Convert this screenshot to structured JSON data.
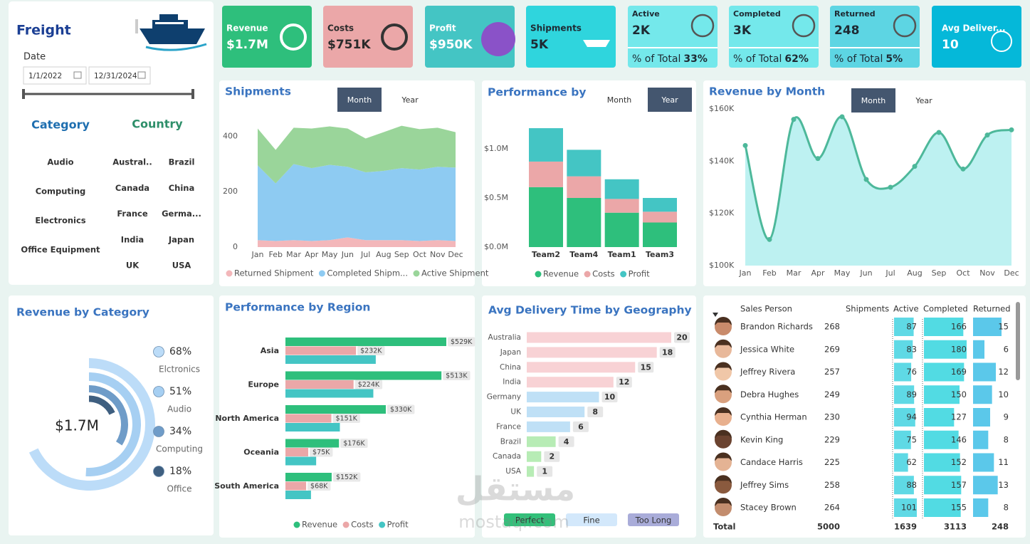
{
  "sidebar": {
    "title": "Freight",
    "date_label": "Date",
    "date_from": "1/1/2022",
    "date_to": "12/31/2024",
    "category_title": "Category",
    "categories": [
      "Audio",
      "Computing",
      "Electronics",
      "Office Equipment"
    ],
    "country_title": "Country",
    "countries": [
      "Austral..",
      "Brazil",
      "Canada",
      "China",
      "France",
      "Germa...",
      "India",
      "Japan",
      "UK",
      "USA"
    ]
  },
  "kpis": [
    {
      "label": "Revenue",
      "value": "$1.7M",
      "color": "#2ebf7c",
      "text_color": "#ffffff"
    },
    {
      "label": "Costs",
      "value": "$751K",
      "color": "#eba7a8",
      "text_color": "#2b2b2b"
    },
    {
      "label": "Profit",
      "value": "$950K",
      "color": "#44c5c4",
      "text_color": "#ffffff"
    },
    {
      "label": "Shipments",
      "value": "5K",
      "color": "#2fd5dd",
      "text_color": "#1e2a33"
    },
    {
      "label": "Active",
      "value": "2K",
      "share_label": "% of Total",
      "share": "33%",
      "color": "#74e8eb",
      "text_color": "#1e2a33"
    },
    {
      "label": "Completed",
      "value": "3K",
      "share_label": "% of Total",
      "share": "62%",
      "color": "#74e8eb",
      "text_color": "#1e2a33"
    },
    {
      "label": "Returned",
      "value": "248",
      "share_label": "% of Total",
      "share": "5%",
      "color": "#5dd5e3",
      "text_color": "#1e2a33"
    },
    {
      "label": "Avg Deliver...",
      "value": "10",
      "color": "#05b8d9",
      "text_color": "#ffffff"
    }
  ],
  "chart_data": [
    {
      "type": "area",
      "title": "Shipments",
      "toggle": [
        "Month",
        "Year"
      ],
      "toggle_selected": 0,
      "categories": [
        "Jan",
        "Feb",
        "Mar",
        "Apr",
        "May",
        "Jun",
        "Jul",
        "Aug",
        "Sep",
        "Oct",
        "Nov",
        "Dec"
      ],
      "series": [
        {
          "name": "Returned Shipment",
          "color": "#f3b7ba",
          "values": [
            25,
            22,
            25,
            22,
            25,
            35,
            25,
            25,
            25,
            22,
            25,
            22
          ]
        },
        {
          "name": "Completed Shipm...",
          "color": "#8ecbf2",
          "values": [
            270,
            208,
            275,
            263,
            272,
            255,
            245,
            250,
            260,
            258,
            265,
            265
          ]
        },
        {
          "name": "Active Shipment",
          "color": "#9ad59a",
          "values": [
            133,
            121,
            131,
            143,
            139,
            138,
            122,
            140,
            153,
            146,
            141,
            128
          ]
        }
      ],
      "ylim": [
        0,
        450
      ],
      "yticks": [
        0,
        200,
        400
      ]
    },
    {
      "type": "bar",
      "title": "Performance by",
      "toggle": [
        "Month",
        "Year"
      ],
      "toggle_selected": 1,
      "categories": [
        "Team2",
        "Team4",
        "Team1",
        "Team3"
      ],
      "series": [
        {
          "name": "Revenue",
          "color": "#2ebf7c",
          "values": [
            0.61,
            0.5,
            0.35,
            0.25
          ]
        },
        {
          "name": "Costs",
          "color": "#eba7a8",
          "values": [
            0.26,
            0.22,
            0.14,
            0.11
          ]
        },
        {
          "name": "Profit",
          "color": "#44c5c4",
          "values": [
            0.34,
            0.27,
            0.2,
            0.14
          ]
        }
      ],
      "ylim": [
        0,
        1.25
      ],
      "yticks": [
        {
          "value": 0,
          "label": "$0.0M"
        },
        {
          "value": 0.5,
          "label": "$0.5M"
        },
        {
          "value": 1,
          "label": "$1.0M"
        }
      ]
    },
    {
      "type": "line",
      "title": "Revenue by Month",
      "toggle": [
        "Month",
        "Year"
      ],
      "toggle_selected": 0,
      "categories": [
        "Jan",
        "Feb",
        "Mar",
        "Apr",
        "May",
        "Jun",
        "Jul",
        "Aug",
        "Sep",
        "Oct",
        "Nov",
        "Dec"
      ],
      "values": [
        146000,
        110000,
        156000,
        141000,
        157000,
        133000,
        130000,
        138000,
        151000,
        137000,
        150000,
        152000
      ],
      "color": "#4db89a",
      "area_color": "#bdf1f1",
      "ylim": [
        100000,
        160000
      ],
      "yticks": [
        {
          "value": 100000,
          "label": "$100K"
        },
        {
          "value": 120000,
          "label": "$120K"
        },
        {
          "value": 140000,
          "label": "$140K"
        },
        {
          "value": 160000,
          "label": "$160K"
        }
      ]
    },
    {
      "type": "radial",
      "title": "Revenue by Category",
      "center_label": "$1.7M",
      "categories": [
        "Elctronics",
        "Audio",
        "Computing",
        "Office"
      ],
      "values": [
        68,
        51,
        34,
        18
      ],
      "value_labels": [
        "68%",
        "51%",
        "34%",
        "18%"
      ],
      "colors": [
        "#bcdcf8",
        "#a6cff2",
        "#6f9cc8",
        "#3f5f80"
      ]
    },
    {
      "type": "hbar",
      "title": "Performance by Region",
      "categories": [
        "Asia",
        "Europe",
        "North America",
        "Oceania",
        "South America"
      ],
      "series": [
        {
          "name": "Revenue",
          "color": "#2ebf7c",
          "values": [
            529000,
            513000,
            330000,
            176000,
            152000
          ],
          "value_labels": [
            "$529K",
            "$513K",
            "$330K",
            "$176K",
            "$152K"
          ]
        },
        {
          "name": "Costs",
          "color": "#eba7a8",
          "values": [
            232000,
            224000,
            151000,
            75000,
            68000
          ],
          "value_labels": [
            "$232K",
            "$224K",
            "$151K",
            "$75K",
            "$68K"
          ]
        },
        {
          "name": "Profit",
          "color": "#44c5c4",
          "values": [
            297000,
            289000,
            179000,
            101000,
            84000
          ]
        }
      ]
    },
    {
      "type": "hbar",
      "title": "Avg Delivery Time by Geography",
      "categories": [
        "Australia",
        "Japan",
        "China",
        "India",
        "Germany",
        "UK",
        "France",
        "Brazil",
        "Canada",
        "USA"
      ],
      "values": [
        20,
        18,
        15,
        12,
        10,
        8,
        6,
        4,
        2,
        1
      ],
      "colors": [
        "#f8d2d5",
        "#f8d2d5",
        "#f8d2d5",
        "#f8d2d5",
        "#bfe0f6",
        "#bfe0f6",
        "#bfe0f6",
        "#b7ecb5",
        "#b7ecb5",
        "#b7ecb5"
      ],
      "legend": [
        {
          "name": "Perfect",
          "color": "#33c07a"
        },
        {
          "name": "Fine",
          "color": "#d3e8fb"
        },
        {
          "name": "Too Long",
          "color": "#a9acd9"
        }
      ]
    }
  ],
  "table": {
    "columns": [
      "Sales Person",
      "Shipments",
      "Active",
      "Completed",
      "Returned"
    ],
    "rows": [
      [
        "Brandon Richards",
        268,
        87,
        166,
        15
      ],
      [
        "Jessica White",
        269,
        83,
        180,
        6
      ],
      [
        "Jeffrey Rivera",
        257,
        76,
        169,
        12
      ],
      [
        "Debra Hughes",
        249,
        89,
        150,
        10
      ],
      [
        "Cynthia Herman",
        230,
        94,
        127,
        9
      ],
      [
        "Kevin King",
        229,
        75,
        146,
        8
      ],
      [
        "Candace Harris",
        225,
        62,
        152,
        11
      ],
      [
        "Jeffrey Sims",
        258,
        88,
        157,
        13
      ],
      [
        "Stacey Brown",
        264,
        101,
        155,
        8
      ]
    ],
    "total": [
      "Total",
      5000,
      1639,
      3113,
      248
    ]
  },
  "watermark": [
    "مستقل",
    "mostaql.com"
  ]
}
